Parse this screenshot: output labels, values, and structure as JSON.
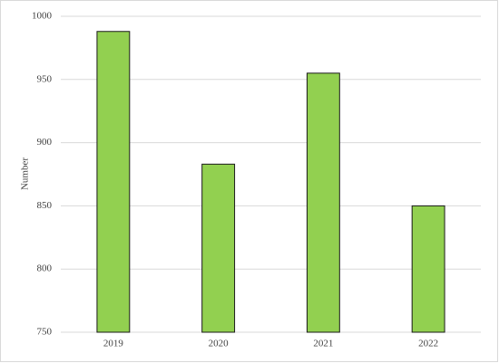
{
  "chart_data": {
    "type": "bar",
    "y_label": "Number",
    "categories": [
      "2019",
      "2020",
      "2021",
      "2022"
    ],
    "values": [
      988,
      883,
      955,
      850
    ],
    "color": "#92d050",
    "ylim": [
      750,
      1000
    ],
    "yticks": [
      750,
      800,
      850,
      900,
      950,
      1000
    ],
    "grid": true
  }
}
